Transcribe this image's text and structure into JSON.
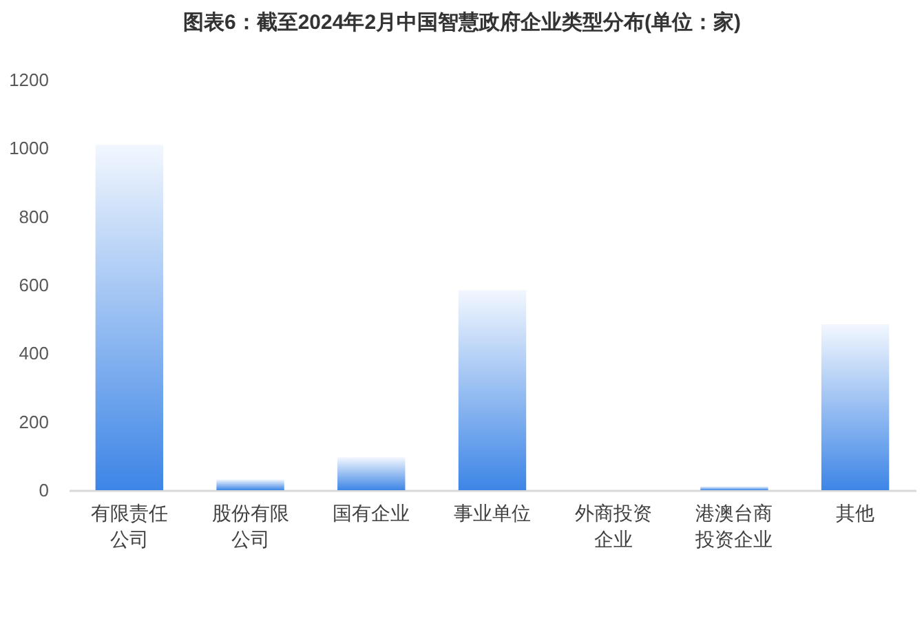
{
  "chart_data": {
    "type": "bar",
    "title": "图表6：截至2024年2月中国智慧政府企业类型分布(单位：家)",
    "categories": [
      "有限责任公司",
      "股份有限公司",
      "国有企业",
      "事业单位",
      "外商投资企业",
      "港澳台商投资企业",
      "其他"
    ],
    "values": [
      1010,
      31,
      96,
      585,
      0,
      11,
      485
    ],
    "color": "#3d85e6",
    "ylim": [
      0,
      1200
    ],
    "yticks": [
      0,
      200,
      400,
      600,
      800,
      1000,
      1200
    ]
  }
}
